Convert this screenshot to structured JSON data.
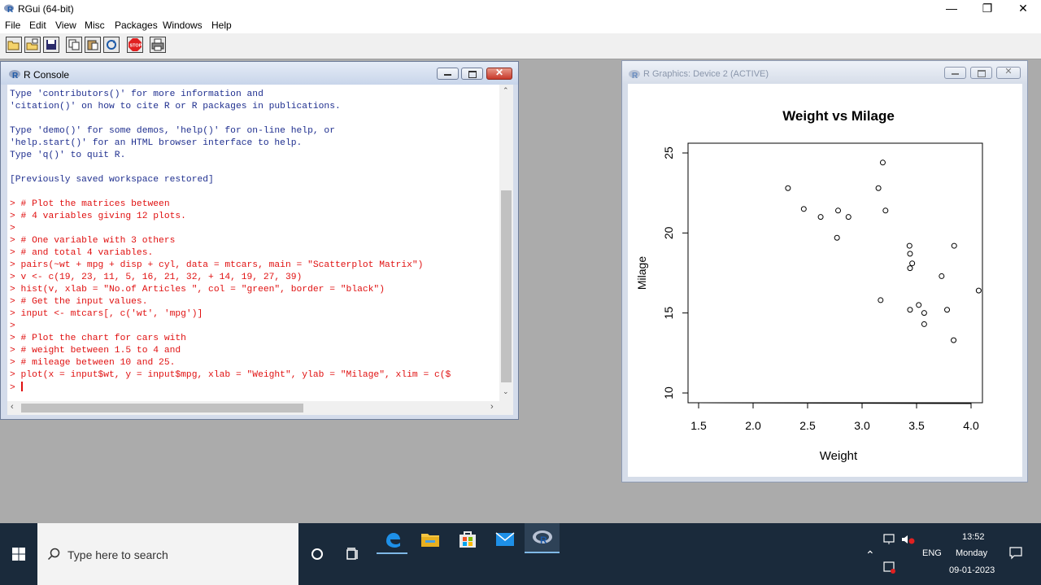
{
  "app": {
    "title": "RGui (64-bit)"
  },
  "window_controls": {
    "minimize": "—",
    "restore": "❐",
    "close": "✕"
  },
  "menu": [
    "File",
    "Edit",
    "View",
    "Misc",
    "Packages",
    "Windows",
    "Help"
  ],
  "toolbar": {
    "buttons": [
      "open-script-icon",
      "load-workspace-icon",
      "save-icon",
      "copy-icon",
      "paste-icon",
      "copy-paste-icon",
      "stop-icon",
      "print-icon"
    ],
    "stop_label": "STOP"
  },
  "console": {
    "title": "R Console",
    "lines": [
      {
        "text": "Type 'contributors()' for more information and",
        "color": "blue"
      },
      {
        "text": "'citation()' on how to cite R or R packages in publications.",
        "color": "blue"
      },
      {
        "text": "",
        "color": "blue"
      },
      {
        "text": "Type 'demo()' for some demos, 'help()' for on-line help, or",
        "color": "blue"
      },
      {
        "text": "'help.start()' for an HTML browser interface to help.",
        "color": "blue"
      },
      {
        "text": "Type 'q()' to quit R.",
        "color": "blue"
      },
      {
        "text": "",
        "color": "blue"
      },
      {
        "text": "[Previously saved workspace restored]",
        "color": "blue"
      },
      {
        "text": "",
        "color": "blue"
      },
      {
        "text": "> # Plot the matrices between",
        "color": "red"
      },
      {
        "text": "> # 4 variables giving 12 plots.",
        "color": "red"
      },
      {
        "text": ">",
        "color": "red"
      },
      {
        "text": "> # One variable with 3 others",
        "color": "red"
      },
      {
        "text": "> # and total 4 variables.",
        "color": "red"
      },
      {
        "text": "> pairs(~wt + mpg + disp + cyl, data = mtcars, main = \"Scatterplot Matrix\")",
        "color": "red"
      },
      {
        "text": "> v <- c(19, 23, 11, 5, 16, 21, 32, + 14, 19, 27, 39)",
        "color": "red"
      },
      {
        "text": "> hist(v, xlab = \"No.of Articles \", col = \"green\", border = \"black\")",
        "color": "red"
      },
      {
        "text": "> # Get the input values.",
        "color": "red"
      },
      {
        "text": "> input <- mtcars[, c('wt', 'mpg')]",
        "color": "red"
      },
      {
        "text": ">",
        "color": "red"
      },
      {
        "text": "> # Plot the chart for cars with",
        "color": "red"
      },
      {
        "text": "> # weight between 1.5 to 4 and",
        "color": "red"
      },
      {
        "text": "> # mileage between 10 and 25.",
        "color": "red"
      },
      {
        "text": "> plot(x = input$wt, y = input$mpg, xlab = \"Weight\", ylab = \"Milage\", xlim = c($",
        "color": "red"
      }
    ],
    "prompt": ">"
  },
  "graphics": {
    "title": "R Graphics: Device 2 (ACTIVE)"
  },
  "chart_data": {
    "type": "scatter",
    "title": "Weight vs Milage",
    "xlabel": "Weight",
    "ylabel": "Milage",
    "xlim": [
      1.5,
      4.0
    ],
    "ylim": [
      10,
      25
    ],
    "xticks": [
      "1.5",
      "2.0",
      "2.5",
      "3.0",
      "3.5",
      "4.0"
    ],
    "yticks": [
      "10",
      "15",
      "20",
      "25"
    ],
    "points": [
      [
        2.32,
        22.8
      ],
      [
        2.465,
        21.5
      ],
      [
        2.62,
        21.0
      ],
      [
        2.77,
        19.7
      ],
      [
        2.78,
        21.4
      ],
      [
        2.875,
        21.0
      ],
      [
        3.15,
        22.8
      ],
      [
        3.17,
        15.8
      ],
      [
        3.19,
        24.4
      ],
      [
        3.215,
        21.4
      ],
      [
        3.435,
        19.2
      ],
      [
        3.44,
        18.7
      ],
      [
        3.44,
        17.8
      ],
      [
        3.44,
        15.2
      ],
      [
        3.46,
        18.1
      ],
      [
        3.52,
        15.5
      ],
      [
        3.57,
        15.0
      ],
      [
        3.57,
        14.3
      ],
      [
        3.73,
        17.3
      ],
      [
        3.78,
        15.2
      ],
      [
        3.845,
        19.2
      ],
      [
        3.84,
        13.3
      ],
      [
        4.07,
        16.4
      ]
    ],
    "grid": false,
    "legend": "none"
  },
  "taskbar": {
    "search_placeholder": "Type here to search",
    "time": "13:52",
    "day": "Monday",
    "date": "09-01-2023",
    "lang": "ENG"
  }
}
